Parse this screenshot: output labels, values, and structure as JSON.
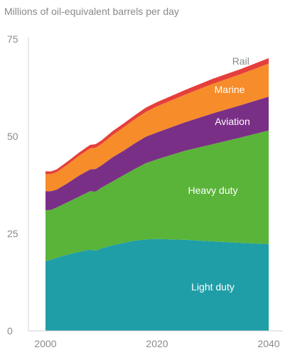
{
  "chart_data": {
    "type": "area",
    "title": "Millions of oil-equivalent barrels per day",
    "stacked": true,
    "xlim": [
      2000,
      2040
    ],
    "ylim": [
      0,
      75
    ],
    "x_ticks": [
      2000,
      2020,
      2040
    ],
    "y_ticks": [
      0,
      25,
      50,
      75
    ],
    "x": [
      2000,
      2001,
      2002,
      2004,
      2006,
      2008,
      2009,
      2010,
      2012,
      2014,
      2016,
      2018,
      2020,
      2025,
      2030,
      2035,
      2040
    ],
    "series": [
      {
        "name": "Light duty",
        "color": "#1f9ea8",
        "values": [
          17.9,
          18.3,
          18.8,
          19.6,
          20.3,
          20.9,
          20.6,
          21.2,
          22.0,
          22.6,
          23.2,
          23.5,
          23.6,
          23.4,
          23.0,
          22.6,
          22.3
        ]
      },
      {
        "name": "Heavy duty",
        "color": "#5ab439",
        "values": [
          13.1,
          12.8,
          12.9,
          13.5,
          14.2,
          15.0,
          15.2,
          15.6,
          16.4,
          17.4,
          18.4,
          19.6,
          20.5,
          22.9,
          25.0,
          27.1,
          29.2
        ]
      },
      {
        "name": "Aviation",
        "color": "#7a2f86",
        "values": [
          4.9,
          4.8,
          4.6,
          4.9,
          5.4,
          5.6,
          5.8,
          5.7,
          6.2,
          6.3,
          6.6,
          6.8,
          6.9,
          7.3,
          7.9,
          8.3,
          8.7
        ]
      },
      {
        "name": "Marine",
        "color": "#f68c2a",
        "values": [
          4.4,
          4.4,
          4.5,
          4.8,
          5.1,
          5.4,
          5.5,
          5.5,
          5.7,
          6.0,
          6.2,
          6.4,
          6.7,
          7.1,
          7.6,
          8.0,
          8.5
        ]
      },
      {
        "name": "Rail",
        "color": "#e53f3b",
        "values": [
          0.7,
          0.7,
          0.7,
          0.8,
          0.8,
          0.9,
          0.9,
          0.9,
          1.0,
          1.0,
          1.0,
          1.1,
          1.1,
          1.2,
          1.3,
          1.3,
          1.4
        ]
      }
    ],
    "legend": "inline labels on areas",
    "grid": false
  }
}
